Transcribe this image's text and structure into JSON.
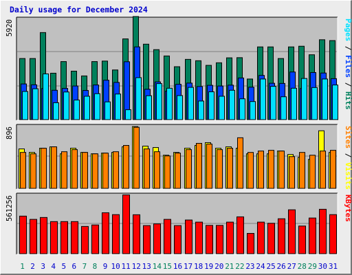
{
  "title": "Daily usage for December 2024",
  "colors": {
    "hits": "#00805c",
    "files": "#0040ff",
    "pages": "#00e0ff",
    "visits": "#ffff00",
    "sites": "#ff8000",
    "kbytes": "#ff0000",
    "panel_bg": "#c0c0c0",
    "gridline": "#808080",
    "day_blue": "#0000cc",
    "day_green": "#00805c"
  },
  "chart_data": [
    {
      "type": "bar",
      "title": "Daily usage for December 2024",
      "ylabel": "Pages / Files / Hits",
      "ylabel_parts": [
        {
          "text": "Pages",
          "color": "#00e0ff"
        },
        {
          "text": " / ",
          "color": "#000000"
        },
        {
          "text": "Files",
          "color": "#0040ff"
        },
        {
          "text": " / ",
          "color": "#000000"
        },
        {
          "text": "Hits",
          "color": "#00805c"
        }
      ],
      "ymax_label": "5920",
      "ylim": [
        0,
        5920
      ],
      "categories": [
        "1",
        "2",
        "3",
        "4",
        "5",
        "6",
        "7",
        "8",
        "9",
        "10",
        "11",
        "12",
        "13",
        "14",
        "15",
        "16",
        "17",
        "18",
        "19",
        "20",
        "21",
        "22",
        "23",
        "24",
        "25",
        "26",
        "27",
        "28",
        "29",
        "30",
        "31"
      ],
      "series": [
        {
          "name": "Hits",
          "color": "#00805c",
          "values": [
            3600,
            3600,
            5120,
            2740,
            3420,
            2860,
            2580,
            3420,
            3450,
            2930,
            4750,
            6060,
            4440,
            4120,
            3750,
            3120,
            3550,
            3470,
            3200,
            3350,
            3640,
            3650,
            2400,
            4280,
            4280,
            3600,
            4280,
            4320,
            3820,
            4700,
            4650
          ]
        },
        {
          "name": "Files",
          "color": "#0040ff",
          "values": [
            2110,
            2060,
            1840,
            1740,
            1850,
            1990,
            1730,
            2050,
            2330,
            2200,
            3410,
            4280,
            1800,
            2230,
            1690,
            2090,
            2160,
            1960,
            2030,
            1990,
            2040,
            2460,
            1920,
            2610,
            2150,
            2140,
            2810,
            1840,
            2780,
            2750,
            2420
          ]
        },
        {
          "name": "Pages",
          "color": "#00e0ff",
          "values": [
            1670,
            1830,
            2700,
            1010,
            1640,
            1170,
            1390,
            1540,
            1060,
            1520,
            600,
            2480,
            1420,
            2130,
            1860,
            1430,
            1910,
            1110,
            1650,
            1390,
            1740,
            1240,
            1080,
            2400,
            1970,
            1360,
            1860,
            2430,
            1900,
            2400,
            2050
          ]
        }
      ]
    },
    {
      "type": "bar",
      "ylabel": "Sites / Visits",
      "ylabel_parts": [
        {
          "text": "Sites",
          "color": "#ff8000"
        },
        {
          "text": " / ",
          "color": "#000000"
        },
        {
          "text": "Visits",
          "color": "#ffff00"
        }
      ],
      "ymax_label": "896",
      "ylim": [
        0,
        896
      ],
      "categories": [
        "1",
        "2",
        "3",
        "4",
        "5",
        "6",
        "7",
        "8",
        "9",
        "10",
        "11",
        "12",
        "13",
        "14",
        "15",
        "16",
        "17",
        "18",
        "19",
        "20",
        "21",
        "22",
        "23",
        "24",
        "25",
        "26",
        "27",
        "28",
        "29",
        "30",
        "31"
      ],
      "series": [
        {
          "name": "Visits",
          "color": "#ffff00",
          "values": [
            570,
            520,
            580,
            600,
            500,
            580,
            520,
            500,
            510,
            520,
            600,
            890,
            610,
            590,
            480,
            520,
            580,
            620,
            660,
            580,
            600,
            580,
            500,
            500,
            500,
            540,
            490,
            450,
            420,
            830,
            520
          ]
        },
        {
          "name": "Sites",
          "color": "#ff8000",
          "values": [
            520,
            500,
            580,
            600,
            530,
            560,
            520,
            500,
            510,
            530,
            620,
            880,
            570,
            530,
            470,
            510,
            560,
            650,
            640,
            560,
            580,
            730,
            520,
            540,
            550,
            540,
            460,
            520,
            480,
            540,
            550
          ]
        }
      ]
    },
    {
      "type": "bar",
      "ylabel": "KBytes",
      "ylabel_parts": [
        {
          "text": "KBytes",
          "color": "#ff0000"
        }
      ],
      "ymax_label": "561256",
      "ylim": [
        0,
        561256
      ],
      "categories": [
        "1",
        "2",
        "3",
        "4",
        "5",
        "6",
        "7",
        "8",
        "9",
        "10",
        "11",
        "12",
        "13",
        "14",
        "15",
        "16",
        "17",
        "18",
        "19",
        "20",
        "21",
        "22",
        "23",
        "24",
        "25",
        "26",
        "27",
        "28",
        "29",
        "30",
        "31"
      ],
      "series": [
        {
          "name": "KBytes",
          "color": "#ff0000",
          "values": [
            360000,
            329000,
            347000,
            308000,
            308000,
            308000,
            262000,
            276000,
            392000,
            374000,
            561256,
            373000,
            270000,
            286000,
            329000,
            270000,
            323000,
            303000,
            272000,
            272000,
            303000,
            353000,
            196000,
            303000,
            292000,
            335000,
            420000,
            266000,
            342000,
            425000,
            374000
          ]
        }
      ]
    }
  ],
  "day_labels": [
    {
      "text": "1",
      "color": "#00805c"
    },
    {
      "text": "2",
      "color": "#0000cc"
    },
    {
      "text": "3",
      "color": "#0000cc"
    },
    {
      "text": "4",
      "color": "#0000cc"
    },
    {
      "text": "5",
      "color": "#0000cc"
    },
    {
      "text": "6",
      "color": "#0000cc"
    },
    {
      "text": "7",
      "color": "#00805c"
    },
    {
      "text": "8",
      "color": "#00805c"
    },
    {
      "text": "9",
      "color": "#0000cc"
    },
    {
      "text": "10",
      "color": "#0000cc"
    },
    {
      "text": "11",
      "color": "#0000cc"
    },
    {
      "text": "12",
      "color": "#0000cc"
    },
    {
      "text": "13",
      "color": "#0000cc"
    },
    {
      "text": "14",
      "color": "#00805c"
    },
    {
      "text": "15",
      "color": "#00805c"
    },
    {
      "text": "16",
      "color": "#0000cc"
    },
    {
      "text": "17",
      "color": "#0000cc"
    },
    {
      "text": "18",
      "color": "#0000cc"
    },
    {
      "text": "19",
      "color": "#0000cc"
    },
    {
      "text": "20",
      "color": "#0000cc"
    },
    {
      "text": "21",
      "color": "#00805c"
    },
    {
      "text": "22",
      "color": "#00805c"
    },
    {
      "text": "23",
      "color": "#0000cc"
    },
    {
      "text": "24",
      "color": "#0000cc"
    },
    {
      "text": "25",
      "color": "#0000cc"
    },
    {
      "text": "26",
      "color": "#0000cc"
    },
    {
      "text": "27",
      "color": "#0000cc"
    },
    {
      "text": "28",
      "color": "#00805c"
    },
    {
      "text": "29",
      "color": "#00805c"
    },
    {
      "text": "30",
      "color": "#0000cc"
    },
    {
      "text": "31",
      "color": "#0000cc"
    }
  ]
}
